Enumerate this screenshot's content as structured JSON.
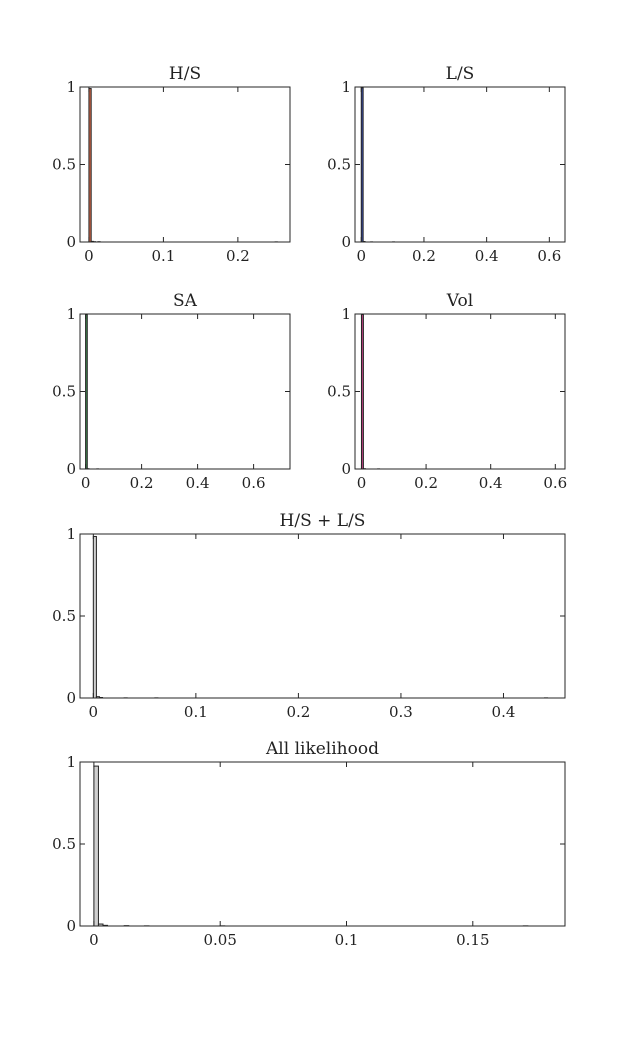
{
  "chart_data": [
    {
      "id": "hs",
      "type": "bar",
      "title": "H/S",
      "xlabel": "",
      "ylabel": "",
      "xlim": [
        -0.012,
        0.27
      ],
      "ylim": [
        0,
        1
      ],
      "xticks": [
        0,
        0.1,
        0.2
      ],
      "xtick_labels": [
        "0",
        "0.1",
        "0.2"
      ],
      "yticks": [
        0,
        0.5,
        1
      ],
      "ytick_labels": [
        "0",
        "0.5",
        "1"
      ],
      "bin_width": 0.003,
      "color": "#d9694a",
      "bins": [
        {
          "x": 0.0,
          "value": 0.99
        },
        {
          "x": 0.003,
          "value": 0.004
        },
        {
          "x": 0.006,
          "value": 0.002
        },
        {
          "x": 0.012,
          "value": 0.002
        },
        {
          "x": 0.25,
          "value": 0.001
        }
      ]
    },
    {
      "id": "ls",
      "type": "bar",
      "title": "L/S",
      "xlabel": "",
      "ylabel": "",
      "xlim": [
        -0.02,
        0.65
      ],
      "ylim": [
        0,
        1
      ],
      "xticks": [
        0,
        0.2,
        0.4,
        0.6
      ],
      "xtick_labels": [
        "0",
        "0.2",
        "0.4",
        "0.6"
      ],
      "yticks": [
        0,
        0.5,
        1
      ],
      "ytick_labels": [
        "0",
        "0.5",
        "1"
      ],
      "bin_width": 0.006,
      "color": "#3b4fa8",
      "bins": [
        {
          "x": 0.0,
          "value": 0.995
        },
        {
          "x": 0.006,
          "value": 0.003
        },
        {
          "x": 0.03,
          "value": 0.001
        },
        {
          "x": 0.1,
          "value": 0.001
        }
      ]
    },
    {
      "id": "sa",
      "type": "bar",
      "title": "SA",
      "xlabel": "",
      "ylabel": "",
      "xlim": [
        -0.02,
        0.73
      ],
      "ylim": [
        0,
        1
      ],
      "xticks": [
        0,
        0.2,
        0.4,
        0.6
      ],
      "xtick_labels": [
        "0",
        "0.2",
        "0.4",
        "0.6"
      ],
      "yticks": [
        0,
        0.5,
        1
      ],
      "ytick_labels": [
        "0",
        "0.5",
        "1"
      ],
      "bin_width": 0.006,
      "color": "#3f8f4f",
      "bins": [
        {
          "x": 0.0,
          "value": 0.997
        },
        {
          "x": 0.006,
          "value": 0.002
        },
        {
          "x": 0.04,
          "value": 0.001
        }
      ]
    },
    {
      "id": "vol",
      "type": "bar",
      "title": "Vol",
      "xlabel": "",
      "ylabel": "",
      "xlim": [
        -0.02,
        0.63
      ],
      "ylim": [
        0,
        1
      ],
      "xticks": [
        0,
        0.2,
        0.4,
        0.6
      ],
      "xtick_labels": [
        "0",
        "0.2",
        "0.4",
        "0.6"
      ],
      "yticks": [
        0,
        0.5,
        1
      ],
      "ytick_labels": [
        "0",
        "0.5",
        "1"
      ],
      "bin_width": 0.006,
      "color": "#b8407f",
      "bins": [
        {
          "x": 0.0,
          "value": 0.997
        },
        {
          "x": 0.006,
          "value": 0.002
        },
        {
          "x": 0.05,
          "value": 0.001
        }
      ]
    },
    {
      "id": "hsls",
      "type": "bar",
      "title": "H/S + L/S",
      "xlabel": "",
      "ylabel": "",
      "xlim": [
        -0.013,
        0.46
      ],
      "ylim": [
        0,
        1
      ],
      "xticks": [
        0,
        0.1,
        0.2,
        0.3,
        0.4
      ],
      "xtick_labels": [
        "0",
        "0.1",
        "0.2",
        "0.3",
        "0.4"
      ],
      "yticks": [
        0,
        0.5,
        1
      ],
      "ytick_labels": [
        "0",
        "0.5",
        "1"
      ],
      "bin_width": 0.003,
      "color": "#cfcfcf",
      "bins": [
        {
          "x": 0.0,
          "value": 0.985
        },
        {
          "x": 0.003,
          "value": 0.008
        },
        {
          "x": 0.006,
          "value": 0.003
        },
        {
          "x": 0.03,
          "value": 0.001
        },
        {
          "x": 0.06,
          "value": 0.001
        },
        {
          "x": 0.44,
          "value": 0.001
        }
      ]
    },
    {
      "id": "all",
      "type": "bar",
      "title": "All likelihood",
      "xlabel": "",
      "ylabel": "",
      "xlim": [
        -0.0055,
        0.1865
      ],
      "ylim": [
        0,
        1
      ],
      "xticks": [
        0,
        0.05,
        0.1,
        0.15
      ],
      "xtick_labels": [
        "0",
        "0.05",
        "0.1",
        "0.15"
      ],
      "yticks": [
        0,
        0.5,
        1
      ],
      "ytick_labels": [
        "0",
        "0.5",
        "1"
      ],
      "bin_width": 0.0018,
      "color": "#cfcfcf",
      "bins": [
        {
          "x": 0.0,
          "value": 0.975
        },
        {
          "x": 0.0018,
          "value": 0.012
        },
        {
          "x": 0.0036,
          "value": 0.004
        },
        {
          "x": 0.012,
          "value": 0.002
        },
        {
          "x": 0.02,
          "value": 0.001
        },
        {
          "x": 0.05,
          "value": 0.001
        },
        {
          "x": 0.17,
          "value": 0.001
        }
      ]
    }
  ]
}
